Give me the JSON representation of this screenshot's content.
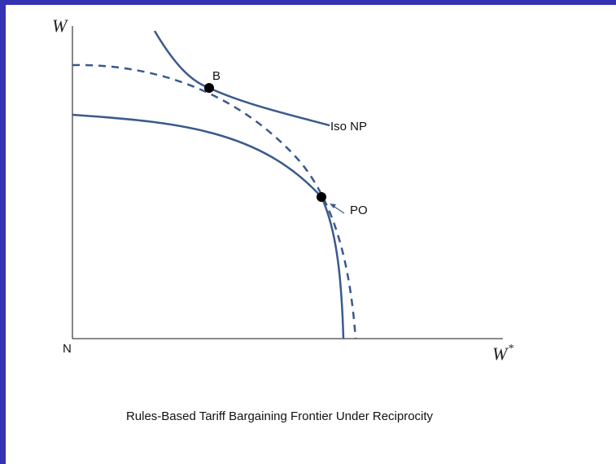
{
  "diagram": {
    "y_axis_label": "W",
    "x_axis_label": "W",
    "x_axis_superscript": "*",
    "origin_label": "N",
    "point_b_label": "B",
    "point_po_label": "PO",
    "curve_label": "Iso NP",
    "caption": "Rules-Based Tariff Bargaining Frontier Under Reciprocity"
  },
  "colors": {
    "frame": "#3333b3",
    "curve": "#3a5a8c",
    "axis": "#444444",
    "point": "#000000"
  }
}
